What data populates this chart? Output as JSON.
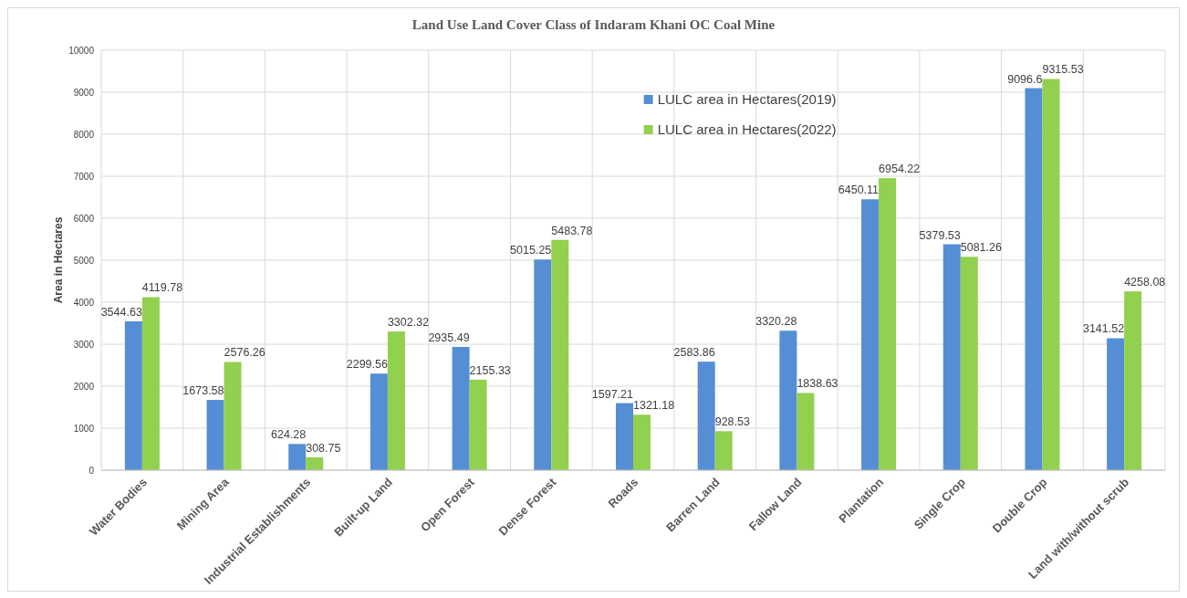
{
  "chart_data": {
    "type": "bar",
    "title": "Land Use Land Cover Class of Indaram Khani OC Coal Mine",
    "ylabel": "Area in  Hectares",
    "categories": [
      "Water Bodies",
      "Mining Area",
      "Industrial Establishments",
      "Built-up Land",
      "Open Forest",
      "Dense Forest",
      "Roads",
      "Barren Land",
      "Fallow Land",
      "Plantation",
      "Single Crop",
      "Double Crop",
      "Land with/without scrub"
    ],
    "series": [
      {
        "name": "LULC area in  Hectares(2019)",
        "color": "#558ed5",
        "values": [
          3544.63,
          1673.58,
          624.28,
          2299.56,
          2935.49,
          5015.25,
          1597.21,
          2583.86,
          3320.28,
          6450.11,
          5379.53,
          9096.6,
          3141.52
        ]
      },
      {
        "name": "LULC area in  Hectares(2022)",
        "color": "#92d050",
        "values": [
          4119.78,
          2576.26,
          308.75,
          3302.32,
          2155.33,
          5483.78,
          1321.18,
          928.53,
          1838.63,
          6954.22,
          5081.26,
          9315.53,
          4258.08
        ]
      }
    ],
    "ylim": [
      0,
      10000
    ],
    "yticks": [
      0,
      1000,
      2000,
      3000,
      4000,
      5000,
      6000,
      7000,
      8000,
      9000,
      10000
    ],
    "grid": true,
    "legend": "top right",
    "data_labels": true
  }
}
